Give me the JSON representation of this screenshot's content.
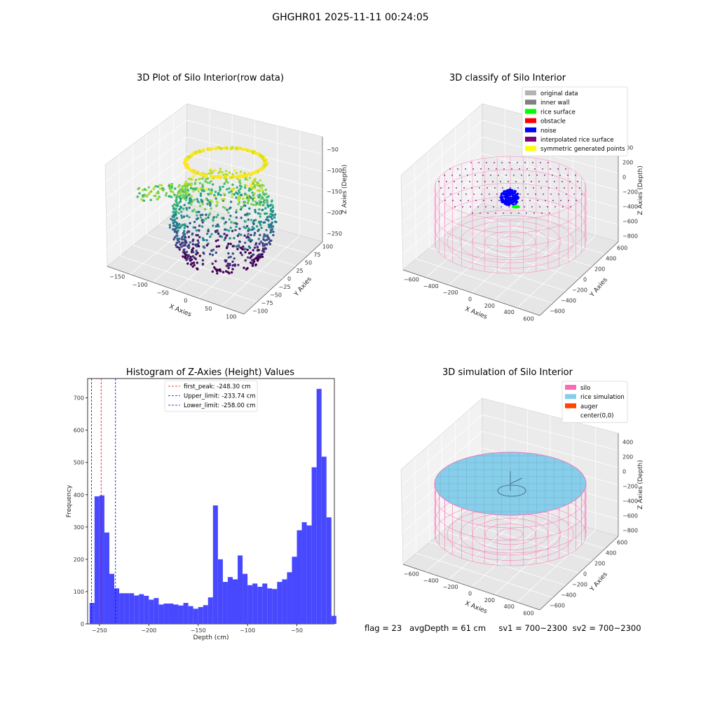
{
  "suptitle": "GHGHR01 2025-11-11 00:24:05",
  "panels": {
    "raw": {
      "title": "3D Plot of Silo Interior(row data)",
      "xlabel": "X Axies",
      "ylabel": "Y Axies",
      "zlabel": "Z Axies (Depth)",
      "xticks": [
        "−150",
        "−100",
        "−50",
        "0",
        "50",
        "100"
      ],
      "yticks": [
        "−100",
        "−75",
        "−50",
        "−25",
        "0",
        "25",
        "50",
        "75",
        "100"
      ],
      "zticks": [
        "−50",
        "−100",
        "−150",
        "−200",
        "−250"
      ]
    },
    "classify": {
      "title": "3D classify of Silo Interior",
      "xlabel": "X Axies",
      "ylabel": "Y Axies",
      "zlabel": "Z Axies (Depth)",
      "xticks": [
        "−600",
        "−400",
        "−200",
        "0",
        "200",
        "400",
        "600"
      ],
      "yticks": [
        "−600",
        "−400",
        "−200",
        "0",
        "200",
        "400",
        "600"
      ],
      "zticks": [
        "400",
        "200",
        "0",
        "−200",
        "−400",
        "−600",
        "−800"
      ],
      "legend": [
        {
          "label": "original data",
          "color": "#b3b3b3"
        },
        {
          "label": "inner wall",
          "color": "#808080"
        },
        {
          "label": "rice surface",
          "color": "#00ff00"
        },
        {
          "label": "obstacle",
          "color": "#ff0000"
        },
        {
          "label": "noise",
          "color": "#0000ff"
        },
        {
          "label": "interpolated rice surface",
          "color": "#800080"
        },
        {
          "label": "symmetric generated points",
          "color": "#ffff00"
        }
      ]
    },
    "histogram": {
      "title": "Histogram of Z-Axies (Height) Values",
      "xlabel": "Depth (cm)",
      "ylabel": "Frequency",
      "xticks": [
        "−250",
        "−200",
        "−150",
        "−100",
        "−50"
      ],
      "yticks": [
        "0",
        "100",
        "200",
        "300",
        "400",
        "500",
        "600",
        "700"
      ],
      "legend": [
        {
          "label": "first_peak: -248.30 cm",
          "color": "#ff0000"
        },
        {
          "label": "Upper_limit: -233.74 cm",
          "color": "#0000ff"
        },
        {
          "label": "Lower_limit: -258.00 cm",
          "color": "#0000ff"
        }
      ]
    },
    "simulation": {
      "title": "3D simulation of Silo Interior",
      "xlabel": "X Axies",
      "ylabel": "Y Axies",
      "zlabel": "Z Axies (Depth)",
      "xticks": [
        "−600",
        "−400",
        "−200",
        "0",
        "200",
        "400",
        "600"
      ],
      "yticks": [
        "−600",
        "−400",
        "−200",
        "0",
        "200",
        "400",
        "600"
      ],
      "zticks": [
        "400",
        "200",
        "0",
        "−200",
        "−400",
        "−600",
        "−800"
      ],
      "legend": [
        {
          "label": "silo",
          "color": "#ff69b4"
        },
        {
          "label": "rice simulation",
          "color": "#87ceeb"
        },
        {
          "label": "auger",
          "color": "#ff4500"
        },
        {
          "label": "center(0,0)",
          "color": ""
        }
      ]
    }
  },
  "status": {
    "flag": "flag = 23",
    "avg_depth": "avgDepth = 61 cm",
    "sv1": "sv1 = 700~2300",
    "sv2": "sv2 = 700~2300"
  },
  "chart_data": [
    {
      "type": "scatter",
      "title": "3D Plot of Silo Interior(row data)",
      "xlabel": "X Axies",
      "ylabel": "Y Axies",
      "zlabel": "Z Axies (Depth)",
      "xlim": [
        -170,
        110
      ],
      "ylim": [
        -100,
        110
      ],
      "zlim": [
        -275,
        -25
      ],
      "colormap": "viridis"
    },
    {
      "type": "scatter",
      "title": "3D classify of Silo Interior",
      "xlabel": "X Axies",
      "ylabel": "Y Axies",
      "zlabel": "Z Axies (Depth)",
      "xlim": [
        -700,
        700
      ],
      "ylim": [
        -700,
        700
      ],
      "zlim": [
        -900,
        400
      ]
    },
    {
      "type": "bar",
      "title": "Histogram of Z-Axies (Height) Values",
      "xlabel": "Depth (cm)",
      "ylabel": "Frequency",
      "xlim": [
        -262,
        -12
      ],
      "ylim": [
        0,
        760
      ],
      "bin_width": 5,
      "bin_start": -260,
      "values": [
        65,
        395,
        398,
        283,
        155,
        110,
        95,
        95,
        95,
        88,
        92,
        87,
        75,
        80,
        60,
        63,
        63,
        60,
        57,
        65,
        55,
        47,
        52,
        58,
        82,
        367,
        200,
        130,
        145,
        138,
        212,
        155,
        120,
        125,
        115,
        125,
        110,
        108,
        130,
        138,
        160,
        208,
        290,
        315,
        305,
        485,
        728,
        518,
        330,
        25
      ],
      "bar_color": "#4848ff",
      "vlines": [
        {
          "x": -248.3,
          "color": "#ff0000"
        },
        {
          "x": -233.74,
          "color": "#0000ff"
        },
        {
          "x": -258.0,
          "color": "#0000ff"
        }
      ],
      "legend_position": "upper center"
    },
    {
      "type": "scatter",
      "title": "3D simulation of Silo Interior",
      "xlabel": "X Axies",
      "ylabel": "Y Axies",
      "zlabel": "Z Axies (Depth)",
      "xlim": [
        -700,
        700
      ],
      "ylim": [
        -700,
        700
      ],
      "zlim": [
        -900,
        400
      ]
    }
  ]
}
